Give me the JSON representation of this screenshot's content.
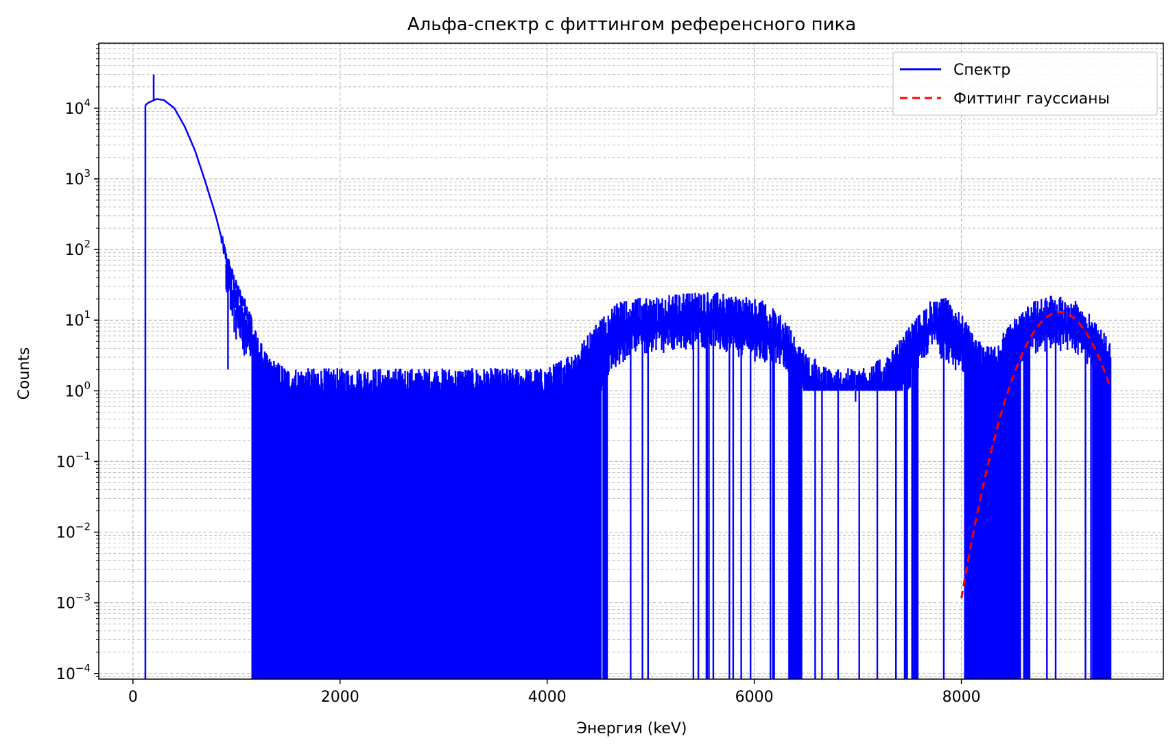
{
  "chart_data": {
    "type": "line",
    "title": "Альфа-спектр с фиттингом референсного пика",
    "xlabel": "Энергия (keV)",
    "ylabel": "Counts",
    "xlim": [
      -330,
      9950
    ],
    "ylim_log10": [
      -4.08,
      4.92
    ],
    "y_scale": "log",
    "grid": "both (major and minor, dashed)",
    "legend_position": "top-right",
    "x_ticks": [
      "0",
      "2000",
      "4000",
      "6000",
      "8000"
    ],
    "x_tick_values": [
      0,
      2000,
      4000,
      6000,
      8000
    ],
    "y_ticks": [
      {
        "base": "10",
        "exp": "−4",
        "value": -4
      },
      {
        "base": "10",
        "exp": "−3",
        "value": -3
      },
      {
        "base": "10",
        "exp": "−2",
        "value": -2
      },
      {
        "base": "10",
        "exp": "−1",
        "value": -1
      },
      {
        "base": "10",
        "exp": "0",
        "value": 0
      },
      {
        "base": "10",
        "exp": "1",
        "value": 1
      },
      {
        "base": "10",
        "exp": "2",
        "value": 2
      },
      {
        "base": "10",
        "exp": "3",
        "value": 3
      },
      {
        "base": "10",
        "exp": "4",
        "value": 4
      }
    ],
    "series": [
      {
        "name": "Спектр",
        "color": "#0000ff",
        "style": "solid",
        "envelope": {
          "description_values_in_energy_keV_and_counts": true,
          "spike": {
            "x": 200,
            "y": 30000
          },
          "onset_x": 120,
          "upper": [
            [
              120,
              11000
            ],
            [
              150,
              12000
            ],
            [
              230,
              13500
            ],
            [
              300,
              13000
            ],
            [
              400,
              10000
            ],
            [
              500,
              5500
            ],
            [
              600,
              2500
            ],
            [
              700,
              900
            ],
            [
              800,
              300
            ],
            [
              900,
              80
            ],
            [
              1000,
              30
            ],
            [
              1100,
              15
            ],
            [
              1200,
              6
            ],
            [
              1300,
              3
            ],
            [
              1500,
              2
            ],
            [
              2000,
              2
            ],
            [
              3000,
              2
            ],
            [
              4000,
              2
            ],
            [
              4300,
              4
            ],
            [
              4500,
              10
            ],
            [
              4700,
              18
            ],
            [
              4900,
              20
            ],
            [
              5200,
              22
            ],
            [
              5500,
              25
            ],
            [
              5800,
              22
            ],
            [
              6100,
              18
            ],
            [
              6300,
              10
            ],
            [
              6450,
              4
            ],
            [
              6700,
              2
            ],
            [
              7000,
              2
            ],
            [
              7300,
              3
            ],
            [
              7500,
              8
            ],
            [
              7700,
              18
            ],
            [
              7850,
              20
            ],
            [
              8000,
              12
            ],
            [
              8150,
              5
            ],
            [
              8300,
              4
            ],
            [
              8500,
              10
            ],
            [
              8700,
              18
            ],
            [
              8900,
              22
            ],
            [
              9100,
              18
            ],
            [
              9300,
              10
            ],
            [
              9420,
              5
            ]
          ],
          "dense_zero_regions": [
            [
              1150,
              4520
            ],
            [
              4540,
              4580
            ],
            [
              6360,
              6460
            ],
            [
              7450,
              7480
            ],
            [
              7520,
              7580
            ],
            [
              8030,
              8570
            ],
            [
              8600,
              8660
            ],
            [
              9270,
              9440
            ]
          ],
          "lower_typical": [
            [
              1150,
              1
            ],
            [
              4500,
              1
            ],
            [
              4550,
              3
            ],
            [
              4800,
              6
            ],
            [
              5500,
              8
            ],
            [
              6300,
              4
            ],
            [
              6500,
              1
            ],
            [
              7400,
              1
            ],
            [
              7700,
              8
            ],
            [
              8000,
              3
            ],
            [
              8300,
              2
            ],
            [
              8600,
              5
            ],
            [
              8900,
              8
            ],
            [
              9200,
              5
            ],
            [
              9440,
              2
            ]
          ]
        }
      },
      {
        "name": "Фиттинг гауссианы",
        "color": "#ff0000",
        "style": "dashed",
        "model": "gaussian",
        "amplitude": 13,
        "mean": 8950,
        "sigma": 220,
        "x_range": [
          8000,
          9440
        ]
      }
    ]
  }
}
